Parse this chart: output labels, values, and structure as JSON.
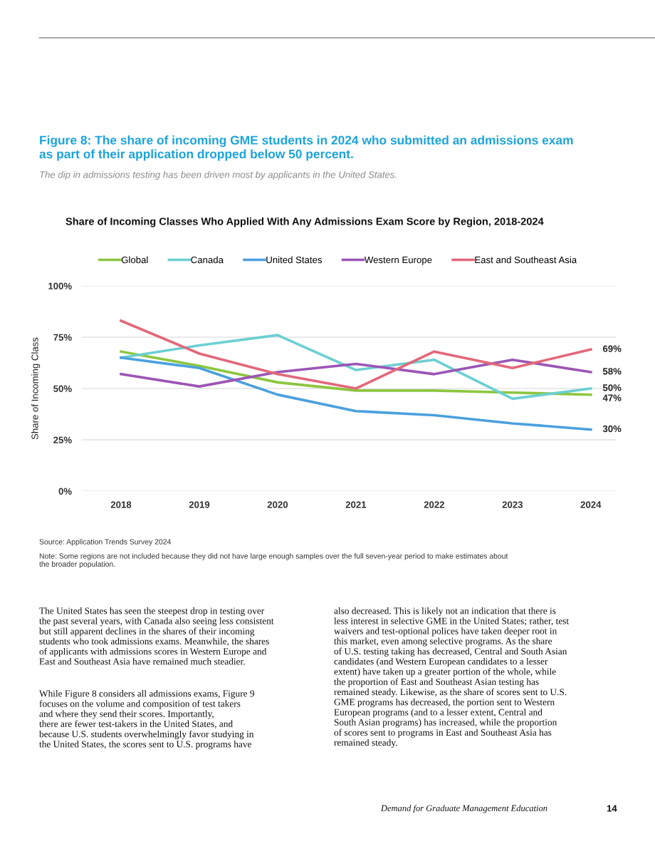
{
  "chart_data": {
    "type": "line",
    "title": "Figure 8: The share of incoming GME students in 2024 who submitted an admissions exam\nas part of their application dropped below 50 percent.",
    "subtitle": "The dip in admissions testing has been driven most by applicants in the United States.",
    "ylabel": "Share of Incoming Class",
    "categories": [
      "2018",
      "2019",
      "2020",
      "2021",
      "2022",
      "2023",
      "2024"
    ],
    "series": [
      {
        "name": "Global",
        "color": "#8cc63f",
        "values": [
          68,
          61,
          53,
          49,
          49,
          48,
          47
        ],
        "value_labels": [
          null,
          null,
          null,
          null,
          null,
          null,
          "47%"
        ]
      },
      {
        "name": "Canada",
        "color": "#6ccfd2",
        "values": [
          65,
          71,
          76,
          59,
          64,
          45,
          50
        ],
        "value_labels": [
          null,
          null,
          null,
          null,
          null,
          null,
          "50%"
        ]
      },
      {
        "name": "United States",
        "color": "#4aa0de",
        "values": [
          65,
          60,
          47,
          39,
          37,
          33,
          30
        ],
        "value_labels": [
          null,
          null,
          null,
          null,
          null,
          null,
          "30%"
        ]
      },
      {
        "name": "Western Europe",
        "color": "#9b55b5",
        "values": [
          57,
          51,
          58,
          62,
          57,
          64,
          58
        ],
        "value_labels": [
          null,
          null,
          null,
          null,
          null,
          null,
          "58%"
        ]
      },
      {
        "name": "East and Southeast Asia",
        "color": "#e2687a",
        "values": [
          83,
          67,
          57,
          50,
          68,
          60,
          69
        ],
        "value_labels": [
          null,
          null,
          null,
          null,
          null,
          null,
          "69%"
        ]
      }
    ],
    "ylim": [
      0,
      100
    ],
    "yticks": [
      {
        "value": 0,
        "label": "0%"
      },
      {
        "value": 25,
        "label": "25%"
      },
      {
        "value": 50,
        "label": "50%"
      },
      {
        "value": 75,
        "label": "75%"
      },
      {
        "value": 100,
        "label": "100%"
      }
    ],
    "grid": "y",
    "legend": "top",
    "marker": "none",
    "line_style": "solid",
    "annotations": [
      "Share of Incoming Classes Who Applied With Any Admissions Exam Score by Region, 2018-2024",
      "Source: Application Trends Survey 2024",
      "Note: Some regions are not included because they did not have large enough samples over the full seven-year period to make estimates about\nthe broader population.",
      "The United States has seen the steepest drop in testing over\nthe past several years, with Canada also seeing less consistent\nbut still apparent declines in the shares of their incoming\nstudents who took admissions exams. Meanwhile, the shares\nof applicants with admissions scores in Western Europe and\nEast and Southeast Asia have remained much steadier.",
      "While Figure 8 considers all admissions exams, Figure 9\nfocuses on the volume and composition of test takers\nand where they send their scores. Importantly,\nthere are fewer test-takers in the United States, and\nbecause U.S. students overwhelmingly favor studying in\nthe United States, the scores sent to U.S. programs have",
      "also decreased. This is likely not an indication that there is\nless interest in selective GME in the United States; rather, test\nwaivers and test-optional polices have taken deeper root in\nthis market, even among selective programs. As the share\nof U.S. testing taking has decreased, Central and South Asian\ncandidates (and Western European candidates to a lesser\nextent) have taken up a greater portion of the whole, while\nthe proportion of East and Southeast Asian testing has\nremained steady. Likewise, as the share of scores sent to U.S.\nGME programs has decreased, the portion sent to Western\nEuropean programs (and to a lesser extent, Central and\nSouth Asian programs) has increased, while the proportion\nof scores sent to programs in East and Southeast Asia has\nremained steady.",
      "Demand for Graduate Management Education",
      "14"
    ]
  }
}
